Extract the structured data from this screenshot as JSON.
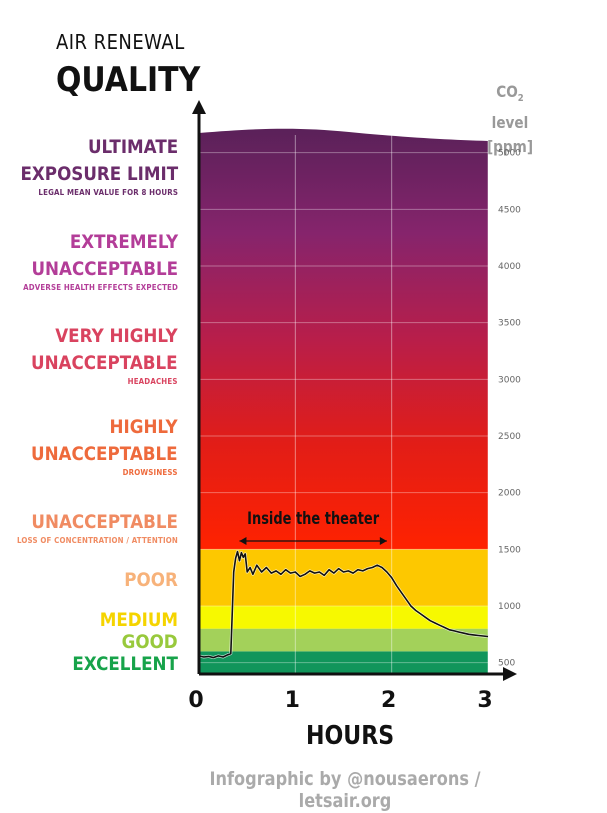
{
  "header": {
    "title_top": "AIR RENEWAL",
    "title_main": "QUALITY"
  },
  "unit": {
    "line1_main": "CO",
    "line1_sub": "2",
    "line1_rest": " level",
    "line2": "[ppm]"
  },
  "credit": "Infographic by @nousaerons / letsair.org",
  "categories": [
    {
      "name": "ULTIMATE EXPOSURE LIMIT",
      "line1": "ULTIMATE",
      "line2": "EXPOSURE LIMIT",
      "note": "LEGAL MEAN VALUE FOR 8 HOURS",
      "color": "#6b2d6b"
    },
    {
      "name": "EXTREMELY UNACCEPTABLE",
      "line1": "EXTREMELY",
      "line2": "UNACCEPTABLE",
      "note": "ADVERSE HEALTH EFFECTS EXPECTED",
      "color": "#b33d98"
    },
    {
      "name": "VERY HIGHLY UNACCEPTABLE",
      "line1": "VERY HIGHLY",
      "line2": "UNACCEPTABLE",
      "note": "HEADACHES",
      "color": "#d9435f"
    },
    {
      "name": "HIGHLY UNACCEPTABLE",
      "line1": "HIGHLY",
      "line2": "UNACCEPTABLE",
      "note": "DROWSINESS",
      "color": "#ee6a3c"
    },
    {
      "name": "UNACCEPTABLE",
      "line1": "UNACCEPTABLE",
      "note": "LOSS OF CONCENTRATION / ATTENTION",
      "color": "#f08b62"
    },
    {
      "name": "POOR",
      "line1": "POOR",
      "color": "#f7b27a"
    },
    {
      "name": "MEDIUM",
      "line1": "MEDIUM",
      "color": "#f5d400"
    },
    {
      "name": "GOOD",
      "line1": "GOOD",
      "color": "#98c93c"
    },
    {
      "name": "EXCELLENT",
      "line1": "EXCELLENT",
      "color": "#17a34a"
    }
  ],
  "chart_data": {
    "type": "line",
    "xlabel": "HOURS",
    "ylabel": "CO2 level [ppm]",
    "xlim": [
      0,
      3
    ],
    "ylim": [
      400,
      5200
    ],
    "x_ticks": [
      0,
      1,
      2,
      3
    ],
    "y_ticks": [
      500,
      1000,
      1500,
      2000,
      2500,
      3000,
      3500,
      4000,
      4500,
      5000
    ],
    "grid": true,
    "zones": [
      {
        "name": "EXCELLENT",
        "from": 400,
        "to": 600,
        "color": "#11955b"
      },
      {
        "name": "GOOD",
        "from": 600,
        "to": 800,
        "color": "#a3d15a"
      },
      {
        "name": "MEDIUM",
        "from": 800,
        "to": 1000,
        "color": "#f7f900"
      },
      {
        "name": "POOR",
        "from": 1000,
        "to": 1500,
        "color": "#fdc800"
      },
      {
        "name": "UNACCEPTABLE+",
        "from": 1500,
        "to": 5200,
        "gradient": [
          "#ff2200",
          "#e21d17",
          "#b81e4a",
          "#86246c",
          "#5a2159"
        ]
      }
    ],
    "annotation": {
      "text": "Inside the theater",
      "x_start": 0.42,
      "x_end": 1.95
    },
    "series": [
      {
        "x": [
          0,
          0.05,
          0.1,
          0.15,
          0.2,
          0.25,
          0.3,
          0.33,
          0.36,
          0.38,
          0.4,
          0.42,
          0.44,
          0.46,
          0.48,
          0.5,
          0.53,
          0.56,
          0.6,
          0.65,
          0.7,
          0.75,
          0.8,
          0.85,
          0.9,
          0.95,
          1.0,
          1.05,
          1.1,
          1.15,
          1.2,
          1.25,
          1.3,
          1.35,
          1.4,
          1.45,
          1.5,
          1.55,
          1.6,
          1.65,
          1.7,
          1.75,
          1.8,
          1.85,
          1.9,
          1.95,
          2.0,
          2.05,
          2.1,
          2.15,
          2.2,
          2.25,
          2.3,
          2.35,
          2.4,
          2.45,
          2.5,
          2.55,
          2.6,
          2.65,
          2.7,
          2.75,
          2.8,
          2.85,
          2.9,
          2.95,
          3.0
        ],
        "y": [
          560,
          550,
          555,
          545,
          560,
          550,
          570,
          580,
          1300,
          1420,
          1480,
          1400,
          1470,
          1430,
          1460,
          1300,
          1340,
          1280,
          1360,
          1300,
          1340,
          1290,
          1310,
          1280,
          1320,
          1290,
          1300,
          1260,
          1280,
          1310,
          1290,
          1300,
          1270,
          1320,
          1290,
          1330,
          1300,
          1310,
          1290,
          1320,
          1310,
          1330,
          1340,
          1360,
          1340,
          1300,
          1250,
          1180,
          1120,
          1060,
          1000,
          960,
          930,
          900,
          870,
          850,
          830,
          810,
          790,
          780,
          770,
          760,
          750,
          745,
          740,
          735,
          730
        ]
      }
    ]
  }
}
